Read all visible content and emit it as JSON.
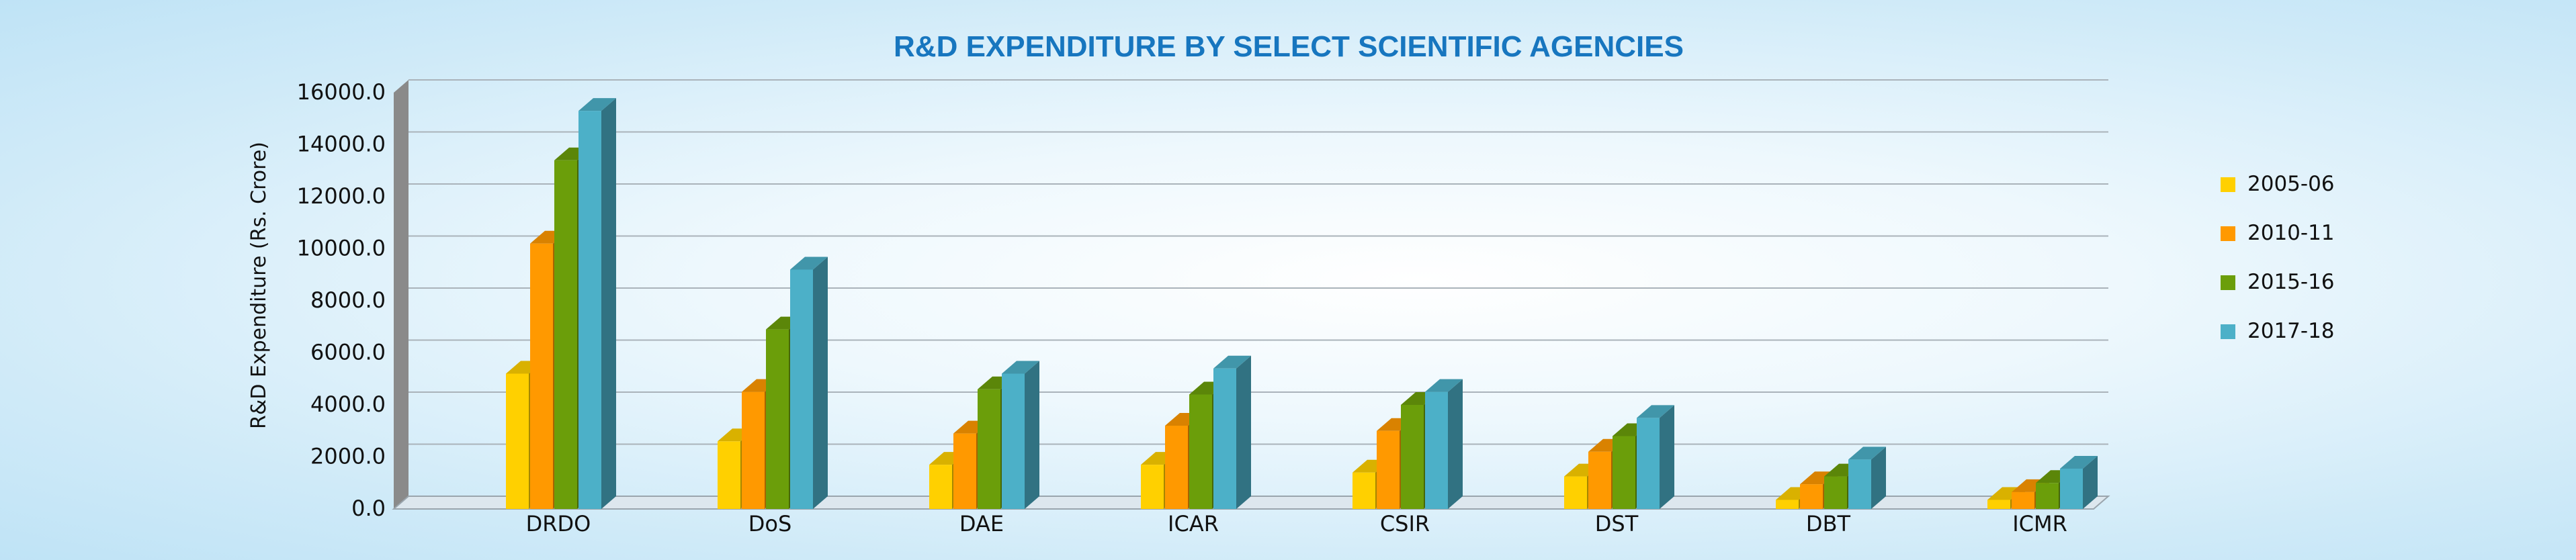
{
  "chart_data": {
    "type": "bar",
    "title": "R&D EXPENDITURE BY SELECT SCIENTIFIC AGENCIES",
    "xlabel": "",
    "ylabel": "R&D Expenditure (Rs. Crore)",
    "ylim": [
      0,
      16000
    ],
    "yticks": [
      "0.0",
      "2000.0",
      "4000.0",
      "6000.0",
      "8000.0",
      "10000.0",
      "12000.0",
      "14000.0",
      "16000.0"
    ],
    "grid": true,
    "legend_position": "right",
    "categories": [
      "DRDO",
      "DoS",
      "DAE",
      "ICAR",
      "CSIR",
      "DST",
      "DBT",
      "ICMR"
    ],
    "series": [
      {
        "name": "2005-06",
        "color": "#ffd000",
        "values": [
          5200,
          2600,
          1700,
          1700,
          1400,
          1250,
          350,
          350
        ]
      },
      {
        "name": "2010-11",
        "color": "#ff9900",
        "values": [
          10200,
          4500,
          2900,
          3200,
          3000,
          2200,
          950,
          650
        ]
      },
      {
        "name": "2015-16",
        "color": "#6b9e0a",
        "values": [
          13400,
          6900,
          4600,
          4400,
          4000,
          2800,
          1250,
          1000
        ]
      },
      {
        "name": "2017-18",
        "color": "#4cb0c8",
        "values": [
          15300,
          9200,
          5200,
          5400,
          4500,
          3500,
          1900,
          1550
        ]
      }
    ]
  }
}
